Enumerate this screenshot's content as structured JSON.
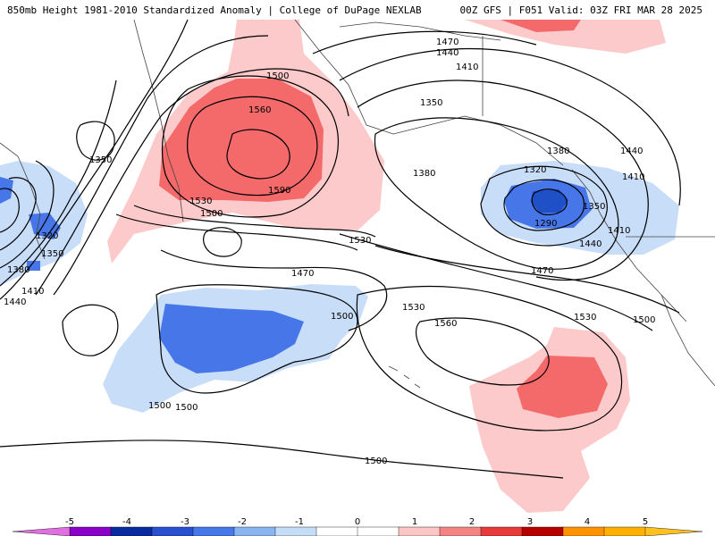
{
  "header": {
    "left_title": "850mb Height 1981-2010 Standardized Anomaly | College of DuPage NEXLAB",
    "right_title": "00Z GFS | F051 Valid: 03Z FRI MAR 28 2025"
  },
  "contour_labels": [
    {
      "id": "l1470a",
      "text": "1470"
    },
    {
      "id": "l1440a",
      "text": "1440"
    },
    {
      "id": "l1410a",
      "text": "1410"
    },
    {
      "id": "l1350a",
      "text": "1350"
    },
    {
      "id": "l1500a",
      "text": "1500"
    },
    {
      "id": "l1560a",
      "text": "1560"
    },
    {
      "id": "l1590a",
      "text": "1590"
    },
    {
      "id": "l1530a",
      "text": "1530"
    },
    {
      "id": "l1500b",
      "text": "1500"
    },
    {
      "id": "l1350b",
      "text": "1350"
    },
    {
      "id": "l1320a",
      "text": "1320"
    },
    {
      "id": "l1350c",
      "text": "1350"
    },
    {
      "id": "l1380a",
      "text": "1380"
    },
    {
      "id": "l1410b",
      "text": "1410"
    },
    {
      "id": "l1440b",
      "text": "1440"
    },
    {
      "id": "l1530b",
      "text": "1530"
    },
    {
      "id": "l1380b",
      "text": "1380"
    },
    {
      "id": "l1380c",
      "text": "1380"
    },
    {
      "id": "l1320b",
      "text": "1320"
    },
    {
      "id": "l1290a",
      "text": "1290"
    },
    {
      "id": "l1350d",
      "text": "1350"
    },
    {
      "id": "l1410c",
      "text": "1410"
    },
    {
      "id": "l1440c",
      "text": "1440"
    },
    {
      "id": "l1410d",
      "text": "1410"
    },
    {
      "id": "l1440d",
      "text": "1440"
    },
    {
      "id": "l1470b",
      "text": "1470"
    },
    {
      "id": "l1470c",
      "text": "1470"
    },
    {
      "id": "l1500c",
      "text": "1500"
    },
    {
      "id": "l1530c",
      "text": "1530"
    },
    {
      "id": "l1560b",
      "text": "1560"
    },
    {
      "id": "l1530d",
      "text": "1530"
    },
    {
      "id": "l1500d",
      "text": "1500"
    },
    {
      "id": "l1500e",
      "text": "1500"
    },
    {
      "id": "l1500f",
      "text": "1500"
    },
    {
      "id": "l1500g",
      "text": "1500"
    }
  ],
  "colorbar": {
    "ticks": [
      "-5",
      "-4",
      "-3",
      "-2",
      "-1",
      "0",
      "1",
      "2",
      "3",
      "4",
      "5"
    ],
    "colors": [
      "#8a00c8",
      "#0a2aa0",
      "#2850d0",
      "#4678ea",
      "#8ab4f0",
      "#c6ddf8",
      "#ffffff",
      "#ffffff",
      "#fdc6c6",
      "#f48484",
      "#e83a3a",
      "#b80000",
      "#ff9400",
      "#ffb000"
    ],
    "arrow_left_color": "#e070e0",
    "arrow_right_color": "#ffc020"
  },
  "anomaly_colors": {
    "strong_positive": "#f46a6a",
    "weak_positive": "#fccaca",
    "weak_negative": "#c8ddf8",
    "strong_negative": "#4676e8",
    "very_strong_negative": "#2050c8"
  }
}
